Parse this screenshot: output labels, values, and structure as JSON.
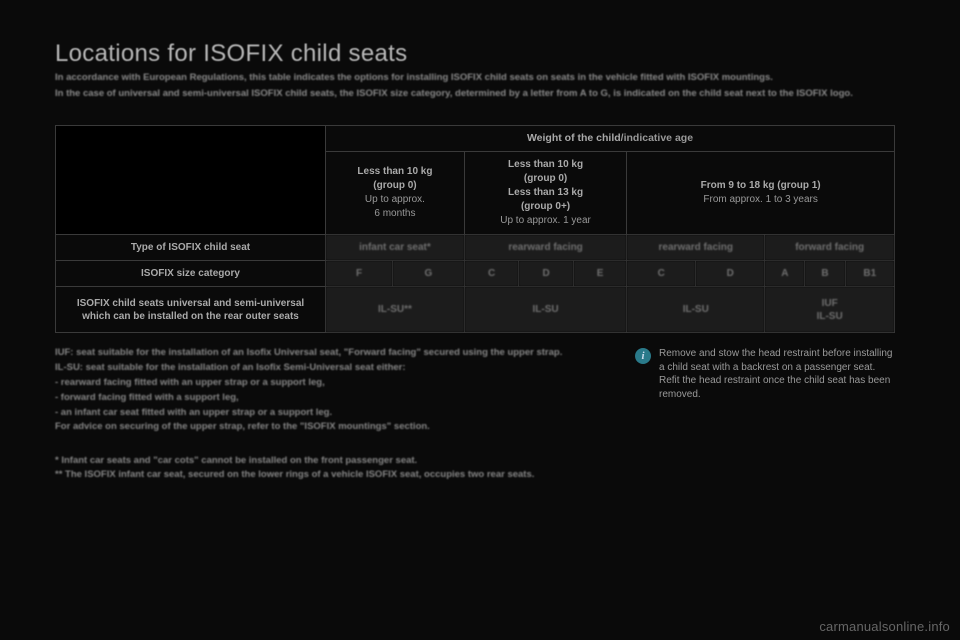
{
  "title": "Locations for ISOFIX child seats",
  "intro1": "In accordance with European Regulations, this table indicates the options for installing ISOFIX child seats on seats in the vehicle fitted with ISOFIX mountings.",
  "intro2": "In the case of universal and semi-universal ISOFIX child seats, the ISOFIX size category, determined by a letter from A to G, is indicated on the child seat next to the ISOFIX logo.",
  "table": {
    "wt_header_bold": "Weight of the child",
    "wt_header_rest": "/indicative age",
    "col1": {
      "l1b": "Less than 10 kg",
      "l2b": "(group 0)",
      "l3": "Up to approx.",
      "l4": "6 months"
    },
    "col2": {
      "l1b": "Less than 10 kg",
      "l2b": "(group 0)",
      "l3b": "Less than 13 kg",
      "l4b": "(group 0+)",
      "l5": "Up to approx. 1 year"
    },
    "col3": {
      "l1b": "From 9 to 18 kg (group 1)",
      "l2": "From approx. 1 to 3 years"
    },
    "row_type_label": "Type of ISOFIX child seat",
    "type_c1": "infant car seat*",
    "type_c2": "rearward facing",
    "type_c3": "rearward facing",
    "type_c4": "forward facing",
    "row_size_label": "ISOFIX size category",
    "size": {
      "a": "F",
      "b": "G",
      "c": "C",
      "d": "D",
      "e": "E",
      "f": "C",
      "g": "D",
      "h": "A",
      "i": "B",
      "j": "B1"
    },
    "row_inst_label": "ISOFIX child seats universal and semi-universal which can be installed on the rear outer seats",
    "inst": {
      "c1": "IL-SU**",
      "c2": "IL-SU",
      "c3": "IL-SU",
      "c4a": "IUF",
      "c4b": "IL-SU"
    }
  },
  "notes": {
    "p1": "IUF: seat suitable for the installation of an Isofix Universal seat, \"Forward facing\" secured using the upper strap.",
    "p2": "IL-SU: seat suitable for the installation of an Isofix Semi-Universal seat either:",
    "b1": "-   rearward facing fitted with an upper strap or a support leg,",
    "b2": "-   forward facing fitted with a support leg,",
    "b3": "-   an infant car seat fitted with an upper strap or a support leg.",
    "p3": "For advice on securing of the upper strap, refer to the \"ISOFIX mountings\" section."
  },
  "aside": "Remove and stow the head restraint before installing a child seat with a backrest on a passenger seat. Refit the head restraint once the child seat has been removed.",
  "foot1": "* Infant car seats and \"car cots\" cannot be installed on the front passenger seat.",
  "foot2": "** The ISOFIX infant car seat, secured on the lower rings of a vehicle ISOFIX seat, occupies two rear seats.",
  "watermark": "carmanualsonline.info"
}
